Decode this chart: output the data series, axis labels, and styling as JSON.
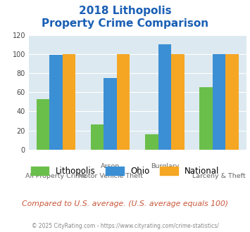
{
  "title_line1": "2018 Lithopolis",
  "title_line2": "Property Crime Comparison",
  "lithopolis": [
    53,
    26,
    16,
    65
  ],
  "ohio": [
    99,
    75,
    110,
    100
  ],
  "national": [
    100,
    100,
    100,
    100
  ],
  "lithopolis_color": "#6abf4b",
  "ohio_color": "#3b8fd4",
  "national_color": "#f5a623",
  "ylim": [
    0,
    120
  ],
  "yticks": [
    0,
    20,
    40,
    60,
    80,
    100,
    120
  ],
  "bg_color": "#dce9f0",
  "fig_bg": "#ffffff",
  "title_color": "#1a5fb4",
  "top_labels": [
    "",
    "Arson",
    "Burglary",
    ""
  ],
  "bot_labels": [
    "All Property Crime",
    "Motor Vehicle Theft",
    "",
    "Larceny & Theft"
  ],
  "footer_text": "Compared to U.S. average. (U.S. average equals 100)",
  "footer_color": "#c8573a",
  "credit_text": "© 2025 CityRating.com - https://www.cityrating.com/crime-statistics/",
  "credit_color": "#888888",
  "legend_labels": [
    "Lithopolis",
    "Ohio",
    "National"
  ]
}
